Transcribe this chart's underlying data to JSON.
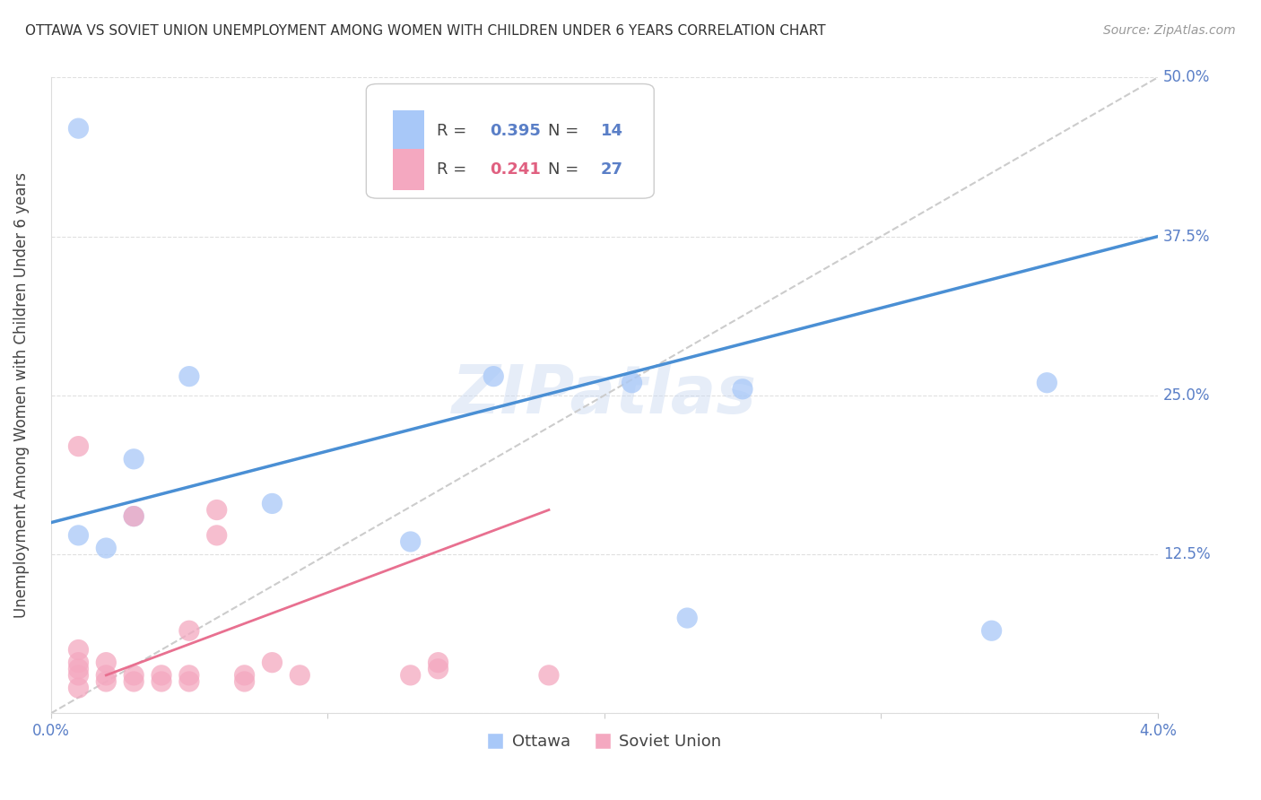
{
  "title": "OTTAWA VS SOVIET UNION UNEMPLOYMENT AMONG WOMEN WITH CHILDREN UNDER 6 YEARS CORRELATION CHART",
  "source": "Source: ZipAtlas.com",
  "ylabel": "Unemployment Among Women with Children Under 6 years",
  "xlim": [
    0.0,
    0.04
  ],
  "ylim": [
    0.0,
    0.5
  ],
  "yticks": [
    0.0,
    0.125,
    0.25,
    0.375,
    0.5
  ],
  "ytick_labels": [
    "",
    "12.5%",
    "25.0%",
    "37.5%",
    "50.0%"
  ],
  "xticks": [
    0.0,
    0.01,
    0.02,
    0.03,
    0.04
  ],
  "xtick_labels": [
    "0.0%",
    "",
    "",
    "",
    "4.0%"
  ],
  "ottawa_R": 0.395,
  "ottawa_N": 14,
  "soviet_R": 0.241,
  "soviet_N": 27,
  "ottawa_color": "#a8c8f8",
  "soviet_color": "#f4a8c0",
  "trend_blue": "#4a8fd4",
  "trend_pink": "#e87090",
  "trend_gray": "#cccccc",
  "ottawa_x": [
    0.001,
    0.001,
    0.002,
    0.003,
    0.003,
    0.005,
    0.008,
    0.013,
    0.016,
    0.021,
    0.025,
    0.034,
    0.036,
    0.023
  ],
  "ottawa_y": [
    0.46,
    0.14,
    0.13,
    0.2,
    0.155,
    0.265,
    0.165,
    0.135,
    0.265,
    0.26,
    0.255,
    0.065,
    0.26,
    0.075
  ],
  "soviet_x": [
    0.001,
    0.001,
    0.001,
    0.001,
    0.001,
    0.001,
    0.002,
    0.002,
    0.002,
    0.003,
    0.003,
    0.003,
    0.004,
    0.004,
    0.005,
    0.005,
    0.005,
    0.006,
    0.006,
    0.007,
    0.007,
    0.008,
    0.009,
    0.013,
    0.014,
    0.014,
    0.018
  ],
  "soviet_y": [
    0.02,
    0.03,
    0.035,
    0.04,
    0.05,
    0.21,
    0.025,
    0.03,
    0.04,
    0.025,
    0.03,
    0.155,
    0.025,
    0.03,
    0.025,
    0.03,
    0.065,
    0.14,
    0.16,
    0.025,
    0.03,
    0.04,
    0.03,
    0.03,
    0.035,
    0.04,
    0.03
  ],
  "title_fontsize": 11,
  "axis_color": "#5a7fc7",
  "background_color": "#ffffff",
  "grid_color": "#e0e0e0",
  "watermark_text": "ZIPatlas",
  "legend_r_color_blue": "#5a7fc7",
  "legend_r_color_pink": "#e06080",
  "blue_trend_x0": 0.0,
  "blue_trend_y0": 0.15,
  "blue_trend_x1": 0.04,
  "blue_trend_y1": 0.375,
  "pink_trend_x0": 0.002,
  "pink_trend_y0": 0.03,
  "pink_trend_x1": 0.018,
  "pink_trend_y1": 0.16
}
